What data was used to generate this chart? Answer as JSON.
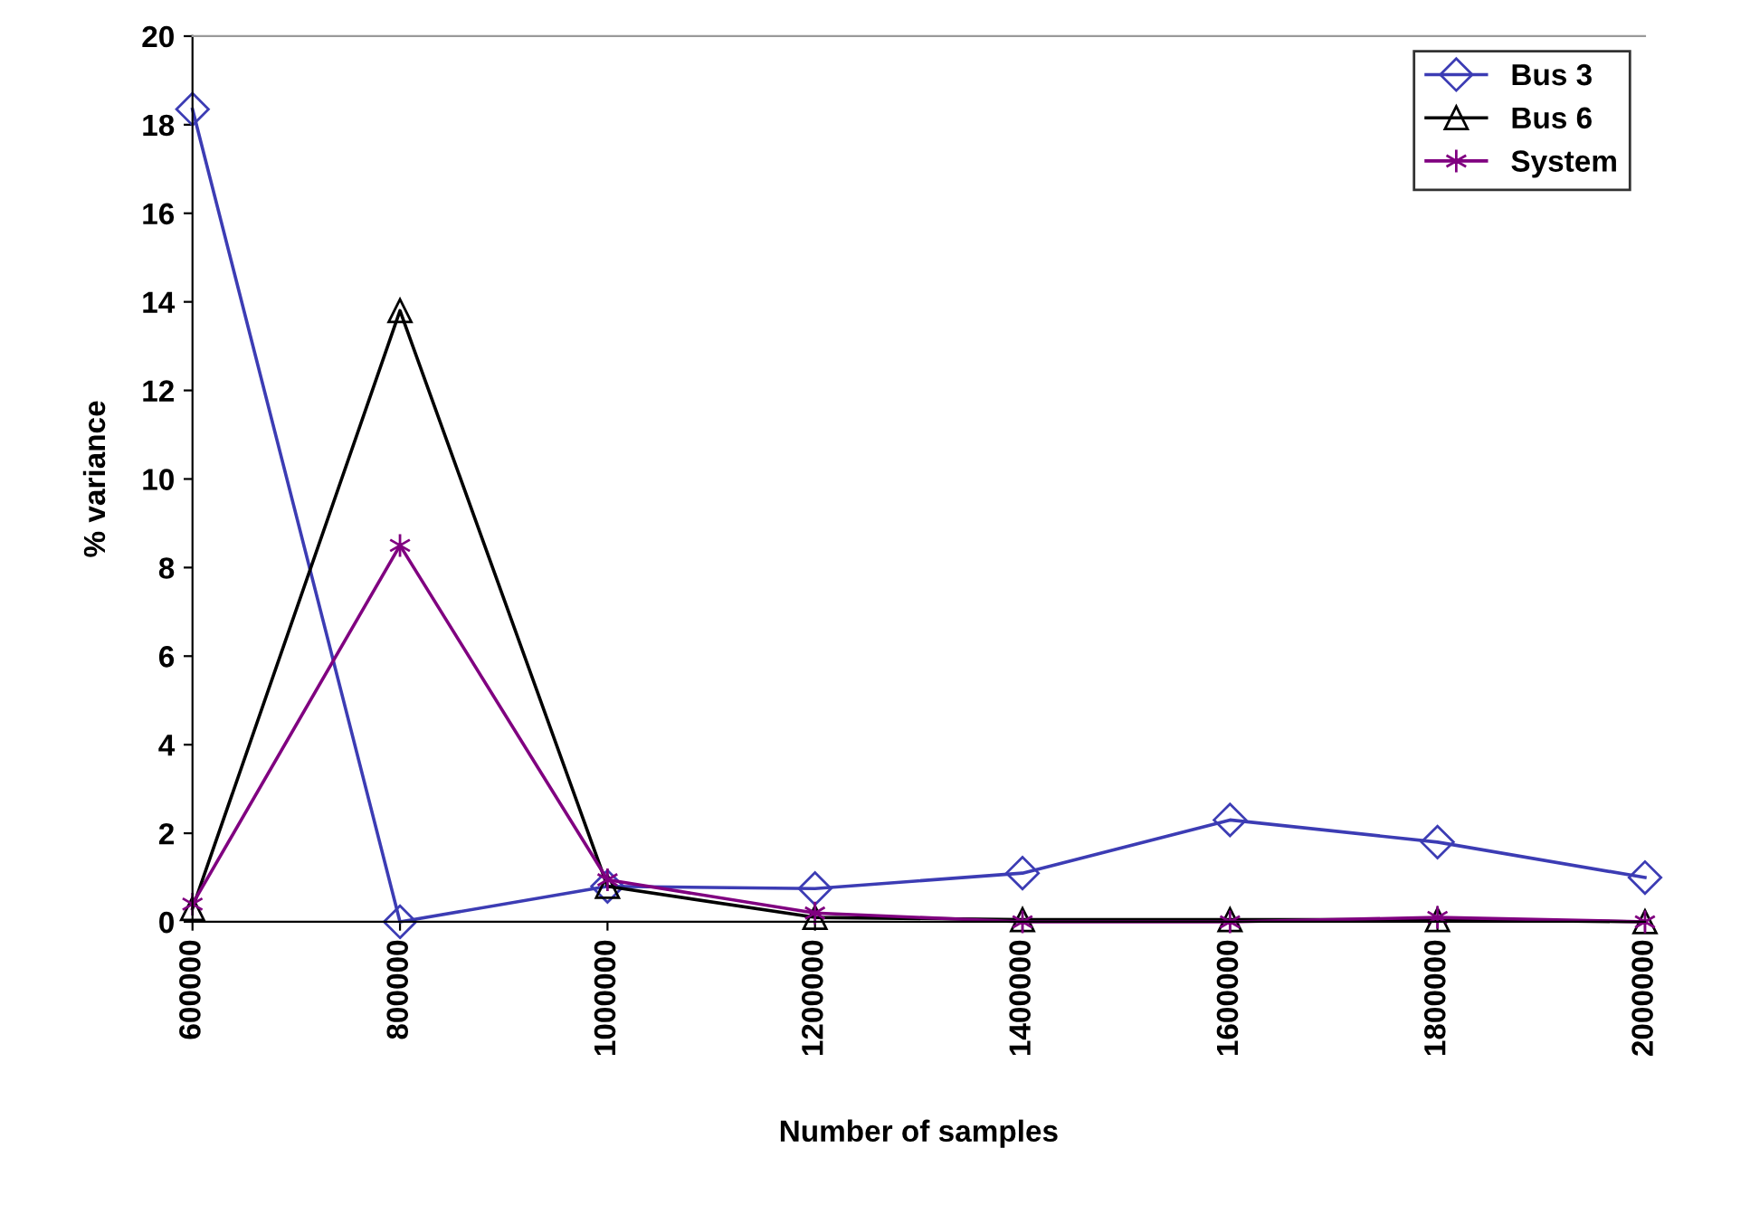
{
  "chart_data": {
    "type": "line",
    "xlabel": "Number of samples",
    "ylabel": "% variance",
    "categories": [
      "600000",
      "800000",
      "1000000",
      "1200000",
      "1400000",
      "1600000",
      "1800000",
      "2000000"
    ],
    "series": [
      {
        "name": "Bus 3",
        "color": "#3c3cb4",
        "marker": "diamond",
        "values": [
          18.35,
          0,
          0.8,
          0.75,
          1.1,
          2.3,
          1.8,
          1.0
        ]
      },
      {
        "name": "Bus 6",
        "color": "#000000",
        "marker": "triangle",
        "values": [
          0.3,
          13.8,
          0.8,
          0.1,
          0.05,
          0.05,
          0.05,
          0
        ]
      },
      {
        "name": "System",
        "color": "#800080",
        "marker": "cross",
        "values": [
          0.4,
          8.5,
          0.95,
          0.2,
          0,
          0,
          0.1,
          0
        ]
      }
    ],
    "ylim": [
      0,
      20
    ],
    "yticks": [
      0,
      2,
      4,
      6,
      8,
      10,
      12,
      14,
      16,
      18,
      20
    ],
    "grid": false,
    "legend": "top right",
    "line_style": "solid"
  }
}
